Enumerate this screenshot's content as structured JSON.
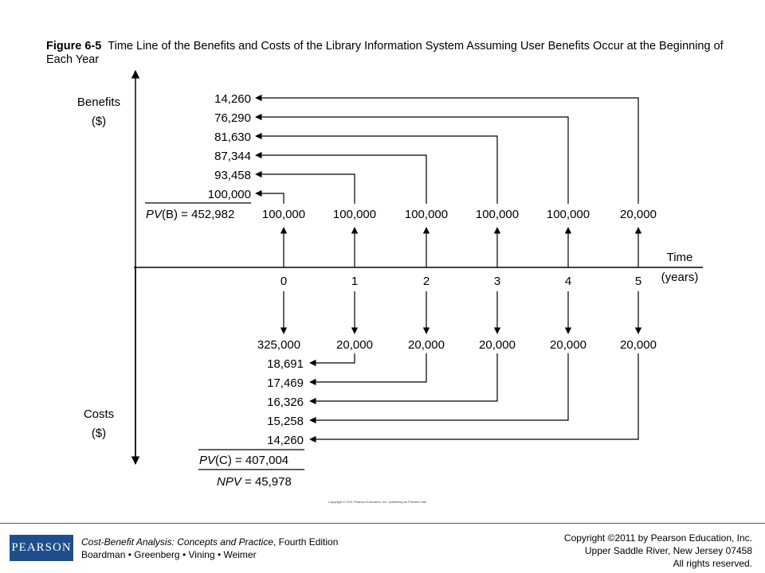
{
  "caption": {
    "figure_label": "Figure 6-5",
    "text": "Time Line of the Benefits and Costs of the Library Information System Assuming User Benefits Occur at the Beginning of Each Year"
  },
  "axes": {
    "benefits_label": "Benefits",
    "benefits_unit": "($)",
    "costs_label": "Costs",
    "costs_unit": "($)",
    "time_label": "Time",
    "time_unit": "(years)"
  },
  "years": [
    "0",
    "1",
    "2",
    "3",
    "4",
    "5"
  ],
  "benefits": [
    "100,000",
    "100,000",
    "100,000",
    "100,000",
    "100,000",
    "20,000"
  ],
  "costs": [
    "325,000",
    "20,000",
    "20,000",
    "20,000",
    "20,000",
    "20,000"
  ],
  "pv_benefits": [
    "14,260",
    "76,290",
    "81,630",
    "87,344",
    "93,458",
    "100,000"
  ],
  "pv_costs": [
    "18,691",
    "17,469",
    "16,326",
    "15,258",
    "14,260"
  ],
  "pvb": {
    "italic": "PV",
    "text": "(B) = 452,982"
  },
  "pvc": {
    "italic": "PV",
    "text": "(C) = 407,004"
  },
  "npv": {
    "italic": "NPV",
    "text": " = 45,978"
  },
  "tiny_copyright": "Copyright © 2011 Pearson Education, Inc. publishing as Prentice Hall",
  "footer": {
    "logo": "PEARSON",
    "book_title": "Cost-Benefit Analysis: Concepts and Practice",
    "edition": ", Fourth Edition",
    "authors": "Boardman • Greenberg • Vining • Weimer",
    "copyright_1": "Copyright ©2011 by Pearson Education, Inc.",
    "copyright_2": "Upper Saddle River, New Jersey 07458",
    "copyright_3": "All rights reserved."
  }
}
